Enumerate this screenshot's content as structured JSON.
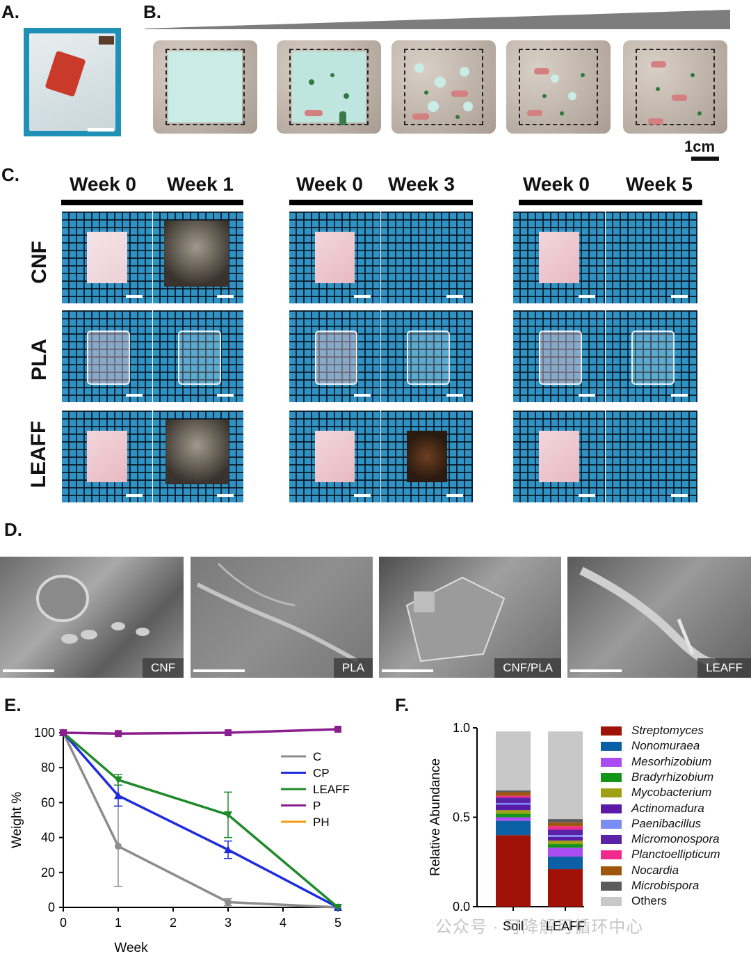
{
  "panels": {
    "A": "A.",
    "B": "B.",
    "C": "C.",
    "D": "D.",
    "E": "E.",
    "F": "F."
  },
  "panel_b": {
    "scale_label": "1cm"
  },
  "panel_c": {
    "groups": [
      {
        "w0": "Week 0",
        "w1": "Week 1"
      },
      {
        "w0": "Week 0",
        "w1": "Week 3"
      },
      {
        "w0": "Week 0",
        "w1": "Week 5"
      }
    ],
    "rows": [
      "CNF",
      "PLA",
      "LEAFF"
    ]
  },
  "panel_d": {
    "labels": [
      "CNF",
      "PLA",
      "CNF/PLA",
      "LEAFF"
    ]
  },
  "chart_data": [
    {
      "type": "line",
      "xlabel": "Week",
      "ylabel": "Weight %",
      "xticks": [
        0,
        1,
        2,
        3,
        4,
        5
      ],
      "yticks": [
        0,
        20,
        40,
        60,
        80,
        100
      ],
      "xlim": [
        0,
        5
      ],
      "ylim": [
        0,
        100
      ],
      "legend_position": "right",
      "series": [
        {
          "name": "C",
          "color": "#8c8c8c",
          "marker": "circle",
          "x": [
            0,
            1,
            3,
            5
          ],
          "y": [
            100,
            35,
            3,
            0
          ],
          "err": [
            0,
            23,
            2,
            0
          ]
        },
        {
          "name": "CP",
          "color": "#1f2be0",
          "marker": "triangle",
          "x": [
            0,
            1,
            3,
            5
          ],
          "y": [
            100,
            64,
            33,
            0
          ],
          "err": [
            0,
            6,
            5,
            0
          ]
        },
        {
          "name": "LEAFF",
          "color": "#1f8a2a",
          "marker": "triangle-down",
          "x": [
            0,
            1,
            3,
            5
          ],
          "y": [
            100,
            73,
            53,
            0
          ],
          "err": [
            0,
            3,
            13,
            0
          ]
        },
        {
          "name": "P",
          "color": "#8b1e8f",
          "marker": "square",
          "x": [
            0,
            1,
            3,
            5
          ],
          "y": [
            100,
            99.5,
            100,
            102
          ],
          "err": [
            0,
            0,
            0,
            0
          ]
        },
        {
          "name": "PH",
          "color": "#f39c12",
          "marker": "none",
          "x": [],
          "y": [],
          "err": []
        }
      ]
    },
    {
      "type": "bar",
      "stacked": true,
      "ylabel": "Relative Abundance",
      "yticks": [
        "0.0",
        "0.5",
        "1.0"
      ],
      "ylim": [
        0,
        1
      ],
      "categories": [
        "Soil",
        "LEAFF"
      ],
      "legend_position": "right",
      "series": [
        {
          "name": "Streptomyces",
          "color": "#a01208",
          "values": [
            0.4,
            0.21
          ]
        },
        {
          "name": "Nonomuraea",
          "color": "#0b5fa5",
          "values": [
            0.08,
            0.07
          ]
        },
        {
          "name": "Mesorhizobium",
          "color": "#a94df2",
          "values": [
            0.02,
            0.05
          ]
        },
        {
          "name": "Bradyrhizobium",
          "color": "#13951a",
          "values": [
            0.02,
            0.02
          ]
        },
        {
          "name": "Mycobacterium",
          "color": "#9fa113",
          "values": [
            0.02,
            0.02
          ]
        },
        {
          "name": "Actinomadura",
          "color": "#5a1aa8",
          "values": [
            0.03,
            0.02
          ]
        },
        {
          "name": "Paenibacillus",
          "color": "#7b8cf5",
          "values": [
            0.01,
            0.01
          ]
        },
        {
          "name": "Micromonospora",
          "color": "#5a22a6",
          "values": [
            0.03,
            0.03
          ]
        },
        {
          "name": "Planctoellipticum",
          "color": "#f22a8e",
          "values": [
            0.01,
            0.02
          ]
        },
        {
          "name": "Nocardia",
          "color": "#a0560d",
          "values": [
            0.02,
            0.02
          ]
        },
        {
          "name": "Microbispora",
          "color": "#5c5c5c",
          "values": [
            0.01,
            0.02
          ]
        },
        {
          "name": "Others",
          "color": "#c8c8c8",
          "values": [
            0.33,
            0.49
          ]
        }
      ]
    }
  ],
  "watermark": "公众号 · 可降解可循环中心"
}
